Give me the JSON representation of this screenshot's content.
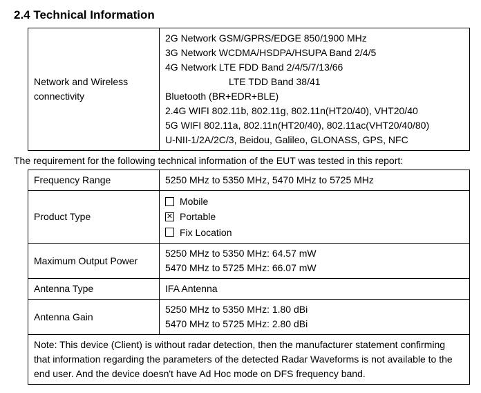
{
  "heading": "2.4  Technical Information",
  "table1": {
    "label": "Network and Wireless connectivity",
    "lines": {
      "l0": "2G Network GSM/GPRS/EDGE 850/1900 MHz",
      "l1": "3G Network WCDMA/HSDPA/HSUPA Band 2/4/5",
      "l2": "4G Network LTE FDD Band 2/4/5/7/13/66",
      "l3": "LTE TDD Band 38/41",
      "l4": "Bluetooth (BR+EDR+BLE)",
      "l5": "2.4G WIFI 802.11b, 802.11g, 802.11n(HT20/40), VHT20/40",
      "l6": "5G WIFI 802.11a, 802.11n(HT20/40), 802.11ac(VHT20/40/80)",
      "l7": "U-NII-1/2A/2C/3, Beidou, Galileo, GLONASS, GPS, NFC"
    }
  },
  "intertext": "The requirement for the following technical information of the EUT was tested in this report:",
  "table2": {
    "freq_range": {
      "label": "Frequency Range",
      "value": "5250 MHz to 5350 MHz, 5470 MHz to 5725 MHz"
    },
    "product_type": {
      "label": "Product Type",
      "opts": {
        "mobile": {
          "label": "Mobile",
          "checked": ""
        },
        "portable": {
          "label": "Portable",
          "checked": "✕"
        },
        "fix": {
          "label": "Fix Location",
          "checked": ""
        }
      }
    },
    "max_power": {
      "label": "Maximum Output Power",
      "l0": "5250 MHz to 5350 MHz: 64.57 mW",
      "l1": "5470 MHz to 5725 MHz: 66.07 mW"
    },
    "antenna_type": {
      "label": "Antenna Type",
      "value": "IFA Antenna"
    },
    "antenna_gain": {
      "label": "Antenna Gain",
      "l0": "5250 MHz to 5350 MHz: 1.80 dBi",
      "l1": "5470 MHz to 5725 MHz: 2.80 dBi"
    },
    "note": "Note: This device (Client) is without radar detection, then the manufacturer statement confirming that information regarding the parameters of the detected Radar Waveforms is not available to the end user. And the device doesn't have Ad Hoc mode on DFS frequency band."
  }
}
